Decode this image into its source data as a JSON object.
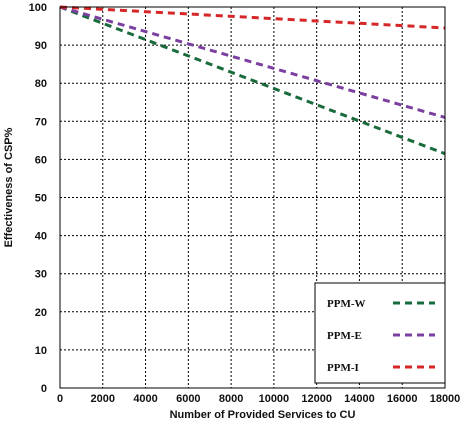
{
  "chart_data": {
    "type": "line",
    "xlabel": "Number of Provided Services to CU",
    "ylabel": "Effectiveness of CSP%",
    "xlim": [
      0,
      18000
    ],
    "ylim": [
      0,
      100
    ],
    "x_ticks": [
      0,
      2000,
      4000,
      6000,
      8000,
      10000,
      12000,
      14000,
      16000,
      18000
    ],
    "y_ticks": [
      0,
      10,
      20,
      30,
      40,
      50,
      60,
      70,
      80,
      90,
      100
    ],
    "grid": true,
    "legend_position": "bottom-right",
    "series": [
      {
        "name": "PPM-W",
        "color": "#1a6b3c",
        "x": [
          0,
          18000
        ],
        "y": [
          100,
          61.5
        ]
      },
      {
        "name": "PPM-E",
        "color": "#7b3fa0",
        "x": [
          0,
          18000
        ],
        "y": [
          100,
          71
        ]
      },
      {
        "name": "PPM-I",
        "color": "#d62728",
        "x": [
          0,
          18000
        ],
        "y": [
          100,
          94.5
        ]
      }
    ]
  }
}
